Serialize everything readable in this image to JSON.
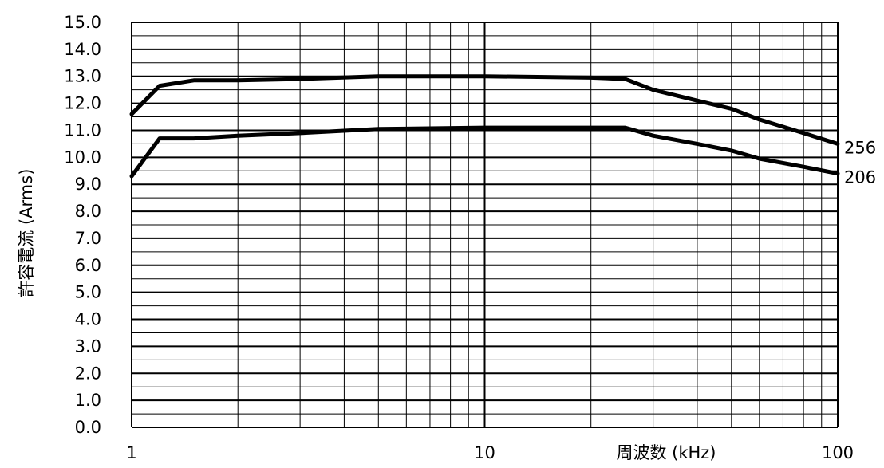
{
  "chart_data": {
    "type": "line",
    "xlabel": "周波数 (kHz)",
    "ylabel": "許容電流 (Arms)",
    "x_scale": "log",
    "xlim": [
      1,
      100
    ],
    "ylim": [
      0,
      15
    ],
    "y_ticks": [
      0,
      1,
      2,
      3,
      4,
      5,
      6,
      7,
      8,
      9,
      10,
      11,
      12,
      13,
      14,
      15
    ],
    "y_tick_labels": [
      "0.0",
      "1.0",
      "2.0",
      "3.0",
      "4.0",
      "5.0",
      "6.0",
      "7.0",
      "8.0",
      "9.0",
      "10.0",
      "11.0",
      "12.0",
      "13.0",
      "14.0",
      "15.0"
    ],
    "x_tick_labels": [
      {
        "value": 1,
        "label": "1"
      },
      {
        "value": 10,
        "label": "10"
      },
      {
        "value": 100,
        "label": "100"
      }
    ],
    "grid": true,
    "series": [
      {
        "name": "256",
        "points": [
          [
            1,
            11.6
          ],
          [
            1.2,
            12.65
          ],
          [
            1.5,
            12.85
          ],
          [
            2,
            12.85
          ],
          [
            3,
            12.9
          ],
          [
            5,
            13.0
          ],
          [
            10,
            13.0
          ],
          [
            20,
            12.95
          ],
          [
            25,
            12.9
          ],
          [
            30,
            12.5
          ],
          [
            40,
            12.1
          ],
          [
            50,
            11.8
          ],
          [
            60,
            11.4
          ],
          [
            80,
            10.9
          ],
          [
            100,
            10.5
          ]
        ]
      },
      {
        "name": "206",
        "points": [
          [
            1,
            9.3
          ],
          [
            1.2,
            10.7
          ],
          [
            1.5,
            10.7
          ],
          [
            2,
            10.8
          ],
          [
            3,
            10.9
          ],
          [
            5,
            11.05
          ],
          [
            10,
            11.1
          ],
          [
            20,
            11.1
          ],
          [
            25,
            11.1
          ],
          [
            30,
            10.8
          ],
          [
            40,
            10.5
          ],
          [
            50,
            10.25
          ],
          [
            60,
            9.95
          ],
          [
            80,
            9.65
          ],
          [
            100,
            9.4
          ]
        ]
      }
    ]
  }
}
